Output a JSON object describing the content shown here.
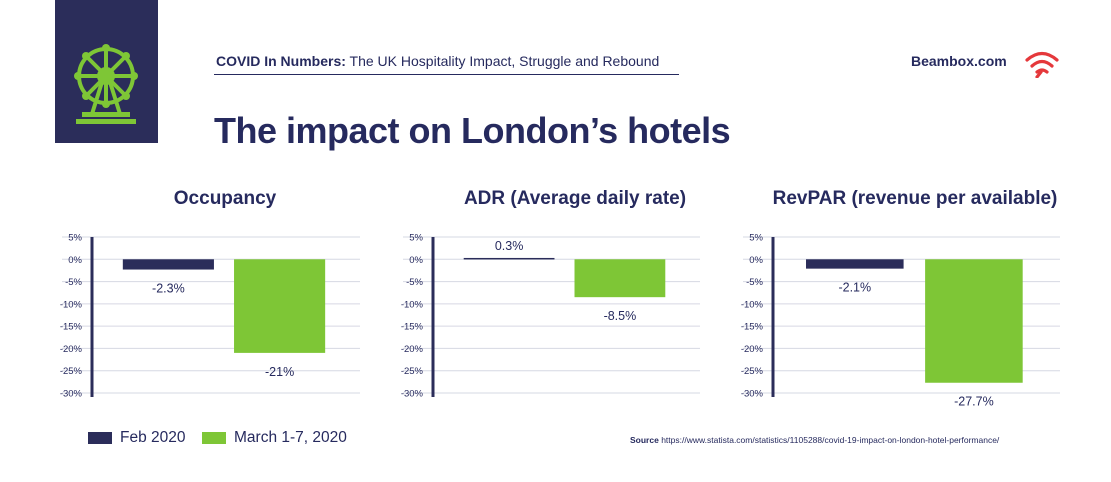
{
  "header": {
    "subtitle_strong": "COVID In Numbers:",
    "subtitle_rest": " The UK Hospitality Impact, Struggle and Rebound",
    "brand": "Beambox.com",
    "title": "The impact on London’s hotels"
  },
  "colors": {
    "navy": "#2b2d5a",
    "green": "#7ec636",
    "brand_red": "#e5383b",
    "text": "#262a5e",
    "grid": "#d6d8e3"
  },
  "icons": {
    "logo": "ferris-wheel-icon",
    "brand": "wifi-signal-icon"
  },
  "legend": [
    {
      "label": "Feb 2020",
      "color": "#2b2d5a"
    },
    {
      "label": "March 1-7, 2020",
      "color": "#7ec636"
    }
  ],
  "source": {
    "label": "Source",
    "text": " https://www.statista.com/statistics/1105288/covid-19-impact-on-london-hotel-performance/"
  },
  "chart_data": [
    {
      "type": "bar",
      "title": "Occupancy",
      "categories": [
        "Feb 2020",
        "March 1-7, 2020"
      ],
      "values": [
        -2.3,
        -21
      ],
      "value_labels": [
        "-2.3%",
        "-21%"
      ],
      "yticks": [
        "5%",
        "0%",
        "-5%",
        "-10%",
        "-15%",
        "-20%",
        "-25%",
        "-30%"
      ],
      "ylim": [
        -30,
        5
      ],
      "grid": true
    },
    {
      "type": "bar",
      "title": "ADR (Average daily rate)",
      "categories": [
        "Feb 2020",
        "March 1-7, 2020"
      ],
      "values": [
        0.3,
        -8.5
      ],
      "value_labels": [
        "0.3%",
        "-8.5%"
      ],
      "yticks": [
        "5%",
        "0%",
        "-5%",
        "-10%",
        "-15%",
        "-20%",
        "-25%",
        "-30%"
      ],
      "ylim": [
        -30,
        5
      ],
      "grid": true
    },
    {
      "type": "bar",
      "title": "RevPAR (revenue per available)",
      "categories": [
        "Feb 2020",
        "March 1-7, 2020"
      ],
      "values": [
        -2.1,
        -27.7
      ],
      "value_labels": [
        "-2.1%",
        "-27.7%"
      ],
      "yticks": [
        "5%",
        "0%",
        "-5%",
        "-10%",
        "-15%",
        "-20%",
        "-25%",
        "-30%"
      ],
      "ylim": [
        -30,
        5
      ],
      "grid": true
    }
  ]
}
